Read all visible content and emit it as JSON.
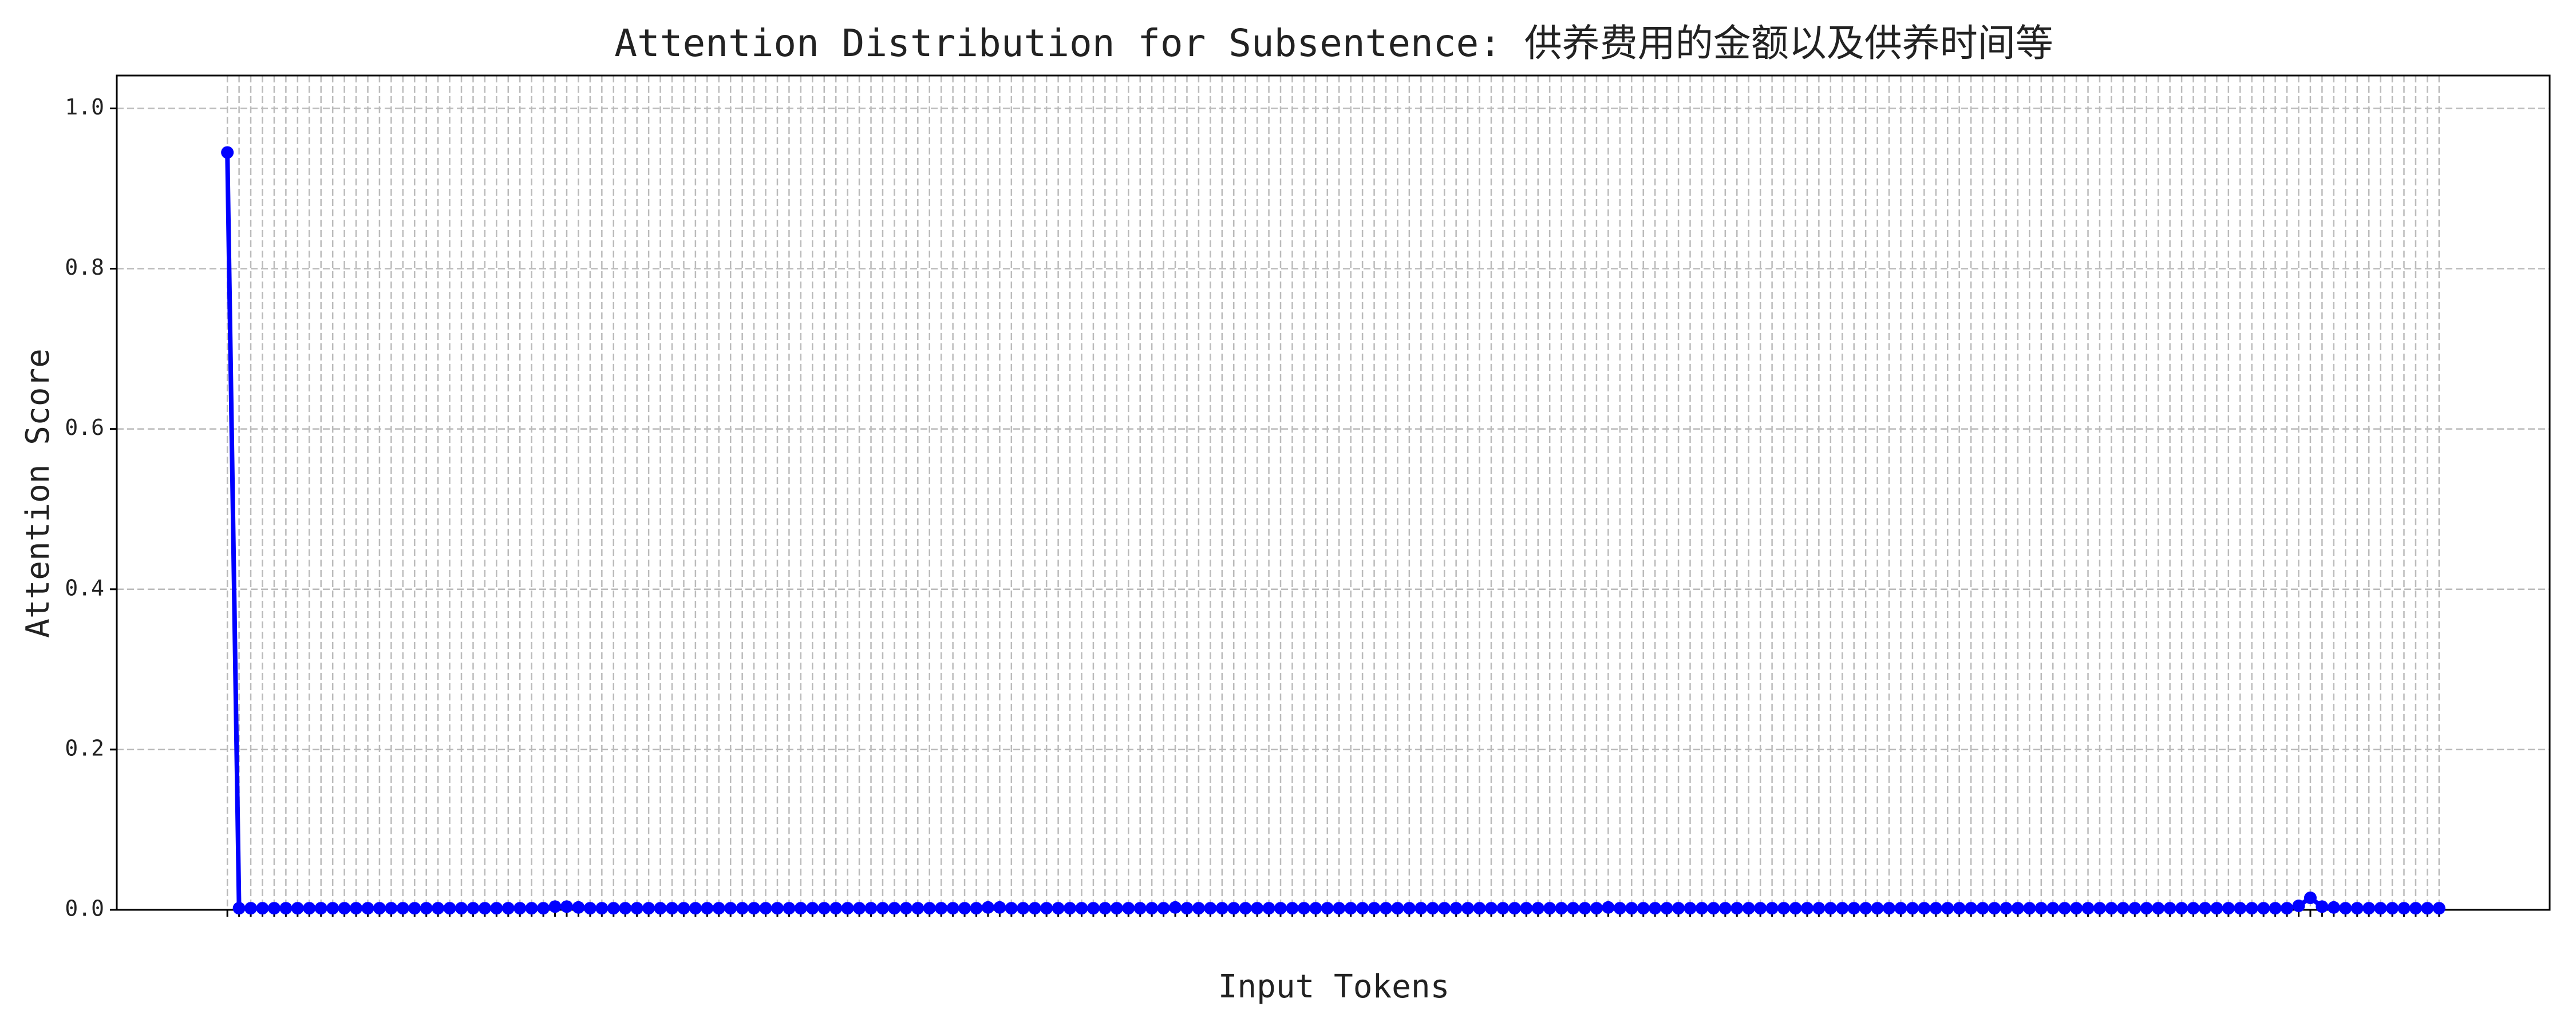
{
  "chart_data": {
    "type": "line",
    "title": "Attention Distribution for Subsentence: 供养费用的金额以及供养时间等",
    "xlabel": "Input Tokens",
    "ylabel": "Attention Score",
    "color": "#0000ff",
    "categories": [
      null,
      null,
      null,
      null,
      null,
      null,
      null,
      null,
      null,
      null,
      null,
      null,
      null,
      null,
      null,
      null,
      null,
      null,
      null,
      null,
      null,
      null,
      null,
      null,
      null,
      null,
      null,
      null,
      null,
      null,
      null,
      null,
      null,
      null,
      null,
      null,
      null,
      null,
      null,
      null,
      null,
      null,
      null,
      null,
      null,
      null,
      null,
      null,
      null,
      null,
      null,
      null,
      null,
      null,
      null,
      null,
      null,
      null,
      null,
      null,
      null,
      null,
      null,
      null,
      null,
      null,
      null,
      null,
      null,
      null,
      null,
      null,
      null,
      null,
      null,
      null,
      null,
      null,
      null,
      null,
      null,
      null,
      null,
      null,
      null,
      null,
      null,
      null,
      null,
      null,
      null,
      null,
      null,
      null,
      null,
      null,
      null,
      null,
      null,
      null,
      null,
      null,
      null,
      null,
      null,
      null,
      null,
      null,
      null,
      null,
      null,
      null,
      null,
      null,
      null,
      null,
      null,
      null,
      null,
      null,
      null,
      null,
      null,
      null,
      null,
      null,
      null,
      null,
      null,
      null,
      null,
      null,
      null,
      null,
      null,
      null,
      null,
      null,
      null,
      null,
      null,
      null,
      null,
      null,
      null,
      null,
      null,
      null,
      null,
      null,
      null,
      null,
      null,
      null,
      null,
      null,
      null,
      null,
      null,
      null,
      null,
      null,
      null,
      null,
      null,
      null,
      null,
      null,
      null,
      null,
      null,
      null,
      null,
      null,
      null,
      null,
      null,
      null,
      null,
      null,
      null,
      null,
      null,
      null,
      null,
      null,
      null,
      null,
      null,
      null
    ],
    "values": [
      0.945,
      0.002,
      0.002,
      0.002,
      0.002,
      0.002,
      0.002,
      0.002,
      0.002,
      0.002,
      0.002,
      0.002,
      0.002,
      0.002,
      0.002,
      0.002,
      0.002,
      0.002,
      0.002,
      0.002,
      0.002,
      0.002,
      0.002,
      0.002,
      0.002,
      0.002,
      0.002,
      0.002,
      0.004,
      0.004,
      0.003,
      0.002,
      0.002,
      0.002,
      0.002,
      0.002,
      0.002,
      0.002,
      0.002,
      0.002,
      0.002,
      0.002,
      0.002,
      0.002,
      0.002,
      0.002,
      0.002,
      0.002,
      0.002,
      0.002,
      0.002,
      0.002,
      0.002,
      0.002,
      0.002,
      0.002,
      0.002,
      0.002,
      0.002,
      0.002,
      0.002,
      0.002,
      0.002,
      0.002,
      0.002,
      0.003,
      0.003,
      0.002,
      0.002,
      0.002,
      0.002,
      0.002,
      0.002,
      0.002,
      0.002,
      0.002,
      0.002,
      0.002,
      0.002,
      0.002,
      0.002,
      0.003,
      0.002,
      0.002,
      0.002,
      0.002,
      0.002,
      0.002,
      0.002,
      0.002,
      0.002,
      0.002,
      0.002,
      0.002,
      0.002,
      0.002,
      0.002,
      0.002,
      0.002,
      0.002,
      0.002,
      0.002,
      0.002,
      0.002,
      0.002,
      0.002,
      0.002,
      0.002,
      0.002,
      0.002,
      0.002,
      0.002,
      0.002,
      0.002,
      0.002,
      0.002,
      0.002,
      0.002,
      0.003,
      0.002,
      0.002,
      0.002,
      0.002,
      0.002,
      0.002,
      0.002,
      0.002,
      0.002,
      0.002,
      0.002,
      0.002,
      0.002,
      0.002,
      0.002,
      0.002,
      0.002,
      0.002,
      0.002,
      0.002,
      0.002,
      0.002,
      0.002,
      0.002,
      0.002,
      0.002,
      0.002,
      0.002,
      0.002,
      0.002,
      0.002,
      0.002,
      0.002,
      0.002,
      0.002,
      0.002,
      0.002,
      0.002,
      0.002,
      0.002,
      0.002,
      0.002,
      0.002,
      0.002,
      0.002,
      0.002,
      0.002,
      0.002,
      0.002,
      0.002,
      0.002,
      0.002,
      0.002,
      0.002,
      0.002,
      0.002,
      0.002,
      0.002,
      0.005,
      0.015,
      0.004,
      0.003,
      0.002,
      0.002,
      0.002,
      0.002,
      0.002,
      0.002,
      0.002,
      0.002,
      0.002
    ],
    "ylim": [
      0,
      1.041
    ],
    "yticks": [
      {
        "value": 0,
        "label": "0.0"
      },
      {
        "value": 0.2,
        "label": "0.2"
      },
      {
        "value": 0.4,
        "label": "0.4"
      },
      {
        "value": 0.6,
        "label": "0.6"
      },
      {
        "value": 0.8,
        "label": "0.8"
      },
      {
        "value": 1,
        "label": "1.0"
      }
    ],
    "grid": true
  }
}
